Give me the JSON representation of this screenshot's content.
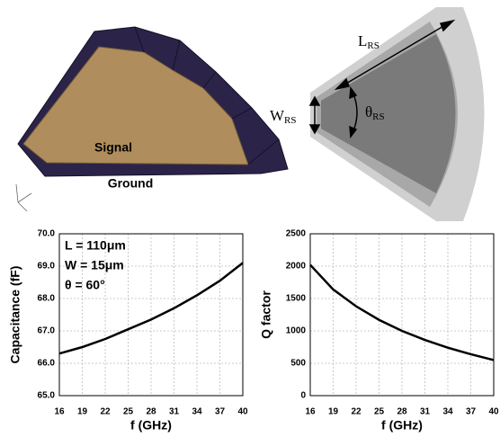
{
  "diagram": {
    "signal": "Signal",
    "ground": "Ground",
    "length": {
      "main": "L",
      "sub": "RS"
    },
    "width": {
      "main": "W",
      "sub": "RS"
    },
    "angle": {
      "main": "θ",
      "sub": "RS"
    }
  },
  "chart_data": [
    {
      "type": "line",
      "xlabel": "f (GHz)",
      "ylabel": "Capacitance (fF)",
      "annotations": [
        "L = 110μm",
        "W = 15μm",
        "θ = 60°"
      ],
      "x": [
        16,
        19,
        22,
        25,
        28,
        31,
        34,
        37,
        40
      ],
      "values": [
        66.3,
        66.5,
        66.75,
        67.05,
        67.35,
        67.7,
        68.1,
        68.55,
        69.1
      ],
      "color": "#000000",
      "xlim": [
        16,
        40
      ],
      "xticks": [
        16,
        19,
        22,
        25,
        28,
        31,
        34,
        37,
        40
      ],
      "ylim": [
        65,
        70
      ],
      "yticks": [
        {
          "value": 65,
          "label": "65.0"
        },
        {
          "value": 66,
          "label": "66.0"
        },
        {
          "value": 67,
          "label": "67.0"
        },
        {
          "value": 68,
          "label": "68.0"
        },
        {
          "value": 69,
          "label": "69.0"
        },
        {
          "value": 70,
          "label": "70.0"
        }
      ],
      "grid": true
    },
    {
      "type": "line",
      "xlabel": "f (GHz)",
      "ylabel": "Q factor",
      "x": [
        16,
        19,
        22,
        25,
        28,
        31,
        34,
        37,
        40
      ],
      "values": [
        2020,
        1640,
        1380,
        1170,
        1000,
        860,
        740,
        640,
        550
      ],
      "color": "#000000",
      "xlim": [
        16,
        40
      ],
      "xticks": [
        16,
        19,
        22,
        25,
        28,
        31,
        34,
        37,
        40
      ],
      "ylim": [
        0,
        2500
      ],
      "yticks": [
        0,
        500,
        1000,
        1500,
        2000,
        2500
      ],
      "grid": true
    }
  ]
}
